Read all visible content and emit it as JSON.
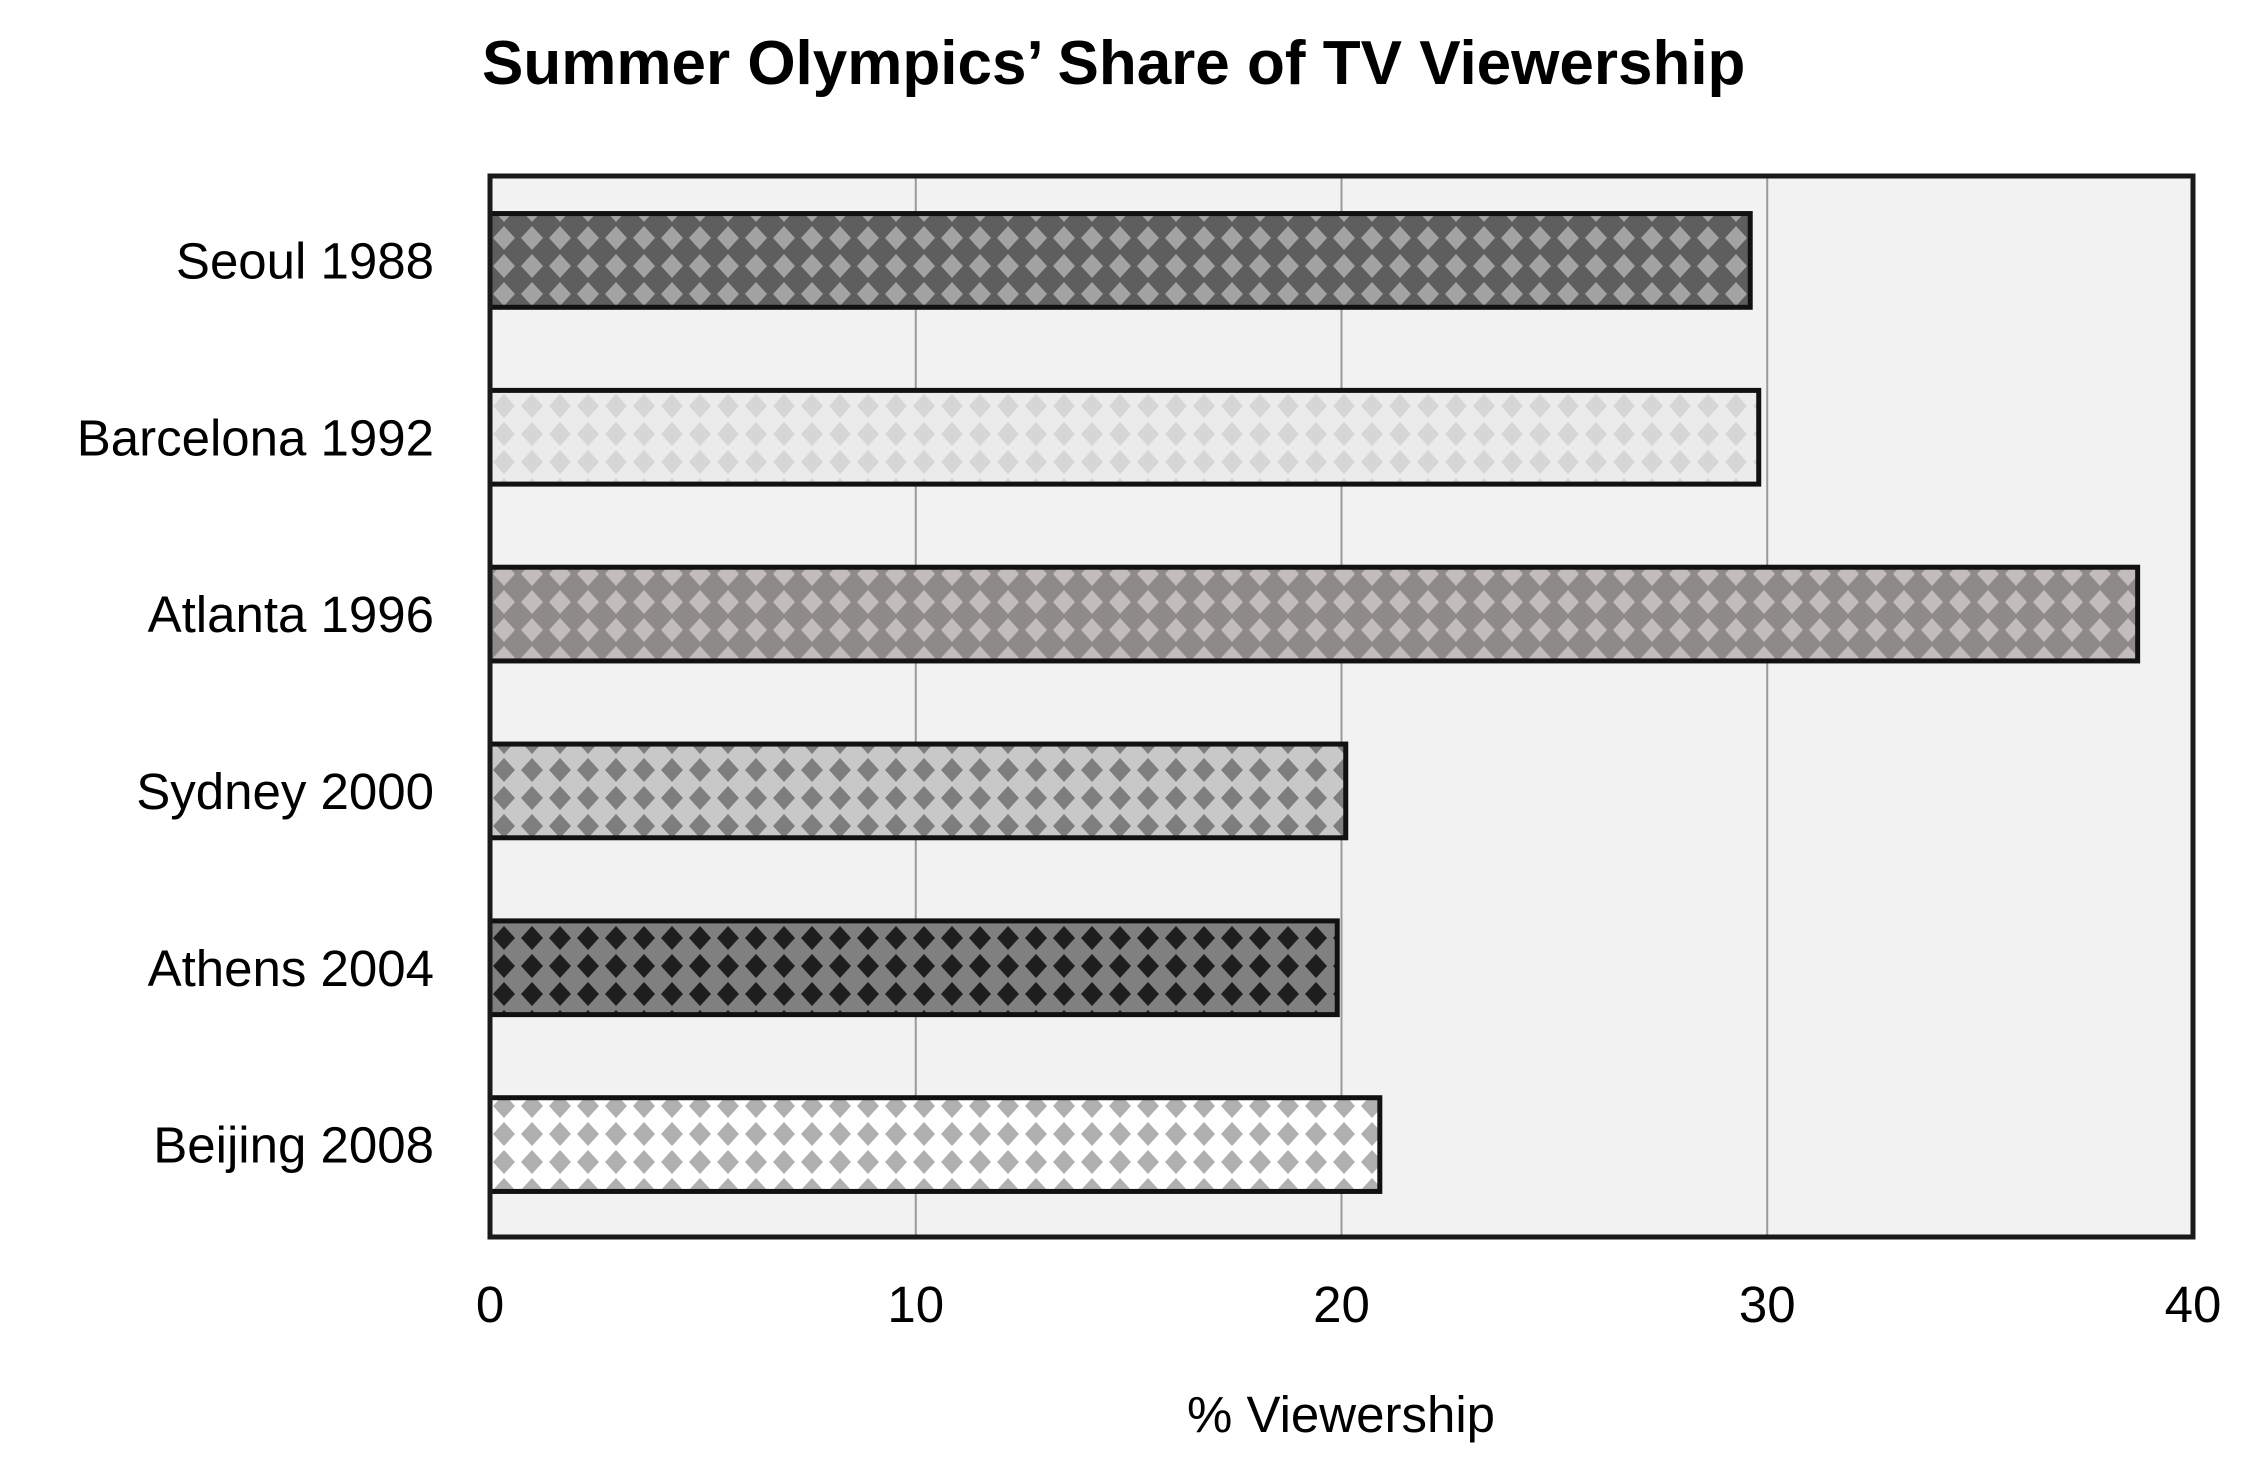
{
  "chart_data": {
    "type": "bar",
    "orientation": "horizontal",
    "title": "Summer Olympics’ Share of TV Viewership",
    "xlabel": "% Viewership",
    "ylabel": "",
    "categories": [
      "Seoul 1988",
      "Barcelona 1992",
      "Atlanta 1996",
      "Sydney 2000",
      "Athens 2004",
      "Beijing 2008"
    ],
    "values": [
      29.6,
      29.8,
      38.7,
      20.1,
      19.9,
      20.9
    ],
    "xlim": [
      0,
      40
    ],
    "xticks": [
      "0",
      "10",
      "20",
      "30",
      "40"
    ],
    "grid": "vertical",
    "legend": "none",
    "colors": {
      "plot_background": "#f2f2f2",
      "gridline": "#999999",
      "frame": "#1a1a1a",
      "bars": [
        {
          "base": "#5e5e5e",
          "pattern": "#a3a3a3"
        },
        {
          "base": "#ebebeb",
          "pattern": "#d6d6d6"
        },
        {
          "base": "#8f8a8a",
          "pattern": "#c2bcbc"
        },
        {
          "base": "#c8c8c8",
          "pattern": "#7e7e7e"
        },
        {
          "base": "#808080",
          "pattern": "#1e1e1e"
        },
        {
          "base": "#ffffff",
          "pattern": "#b0b0b0"
        }
      ]
    }
  }
}
